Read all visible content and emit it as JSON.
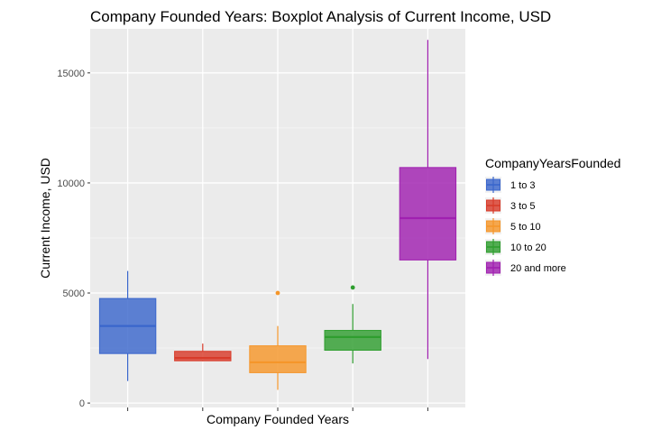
{
  "chart_data": {
    "type": "boxplot",
    "title": "Company Founded Years: Boxplot Analysis of Current Income, USD",
    "xlabel": "Company Founded Years",
    "ylabel": "Current Income, USD",
    "ylim": [
      -200,
      17000
    ],
    "yticks": [
      0,
      5000,
      10000,
      15000
    ],
    "ytick_labels": [
      "0",
      "5000",
      "10000",
      "15000"
    ],
    "categories": [
      "1 to 3",
      "3 to 5",
      "5 to 10",
      "10 to 20",
      "20 and more"
    ],
    "legend_title": "CompanyYearsFounded",
    "legend_position": "right",
    "series": [
      {
        "name": "1 to 3",
        "color": "#3a66cc",
        "min": 1000,
        "q1": 2250,
        "median": 3500,
        "q3": 4750,
        "max": 6000,
        "outliers": []
      },
      {
        "name": "3 to 5",
        "color": "#d83b2a",
        "min": 1900,
        "q1": 1920,
        "median": 2050,
        "q3": 2350,
        "max": 2700,
        "outliers": []
      },
      {
        "name": "5 to 10",
        "color": "#f5962a",
        "min": 600,
        "q1": 1380,
        "median": 1850,
        "q3": 2600,
        "max": 3500,
        "outliers": [
          5000
        ]
      },
      {
        "name": "10 to 20",
        "color": "#2f9e2f",
        "min": 1800,
        "q1": 2400,
        "median": 3000,
        "q3": 3300,
        "max": 4500,
        "outliers": [
          5250
        ]
      },
      {
        "name": "20 and more",
        "color": "#a020b0",
        "min": 2000,
        "q1": 6500,
        "median": 8400,
        "q3": 10700,
        "max": 16500,
        "outliers": []
      }
    ]
  }
}
